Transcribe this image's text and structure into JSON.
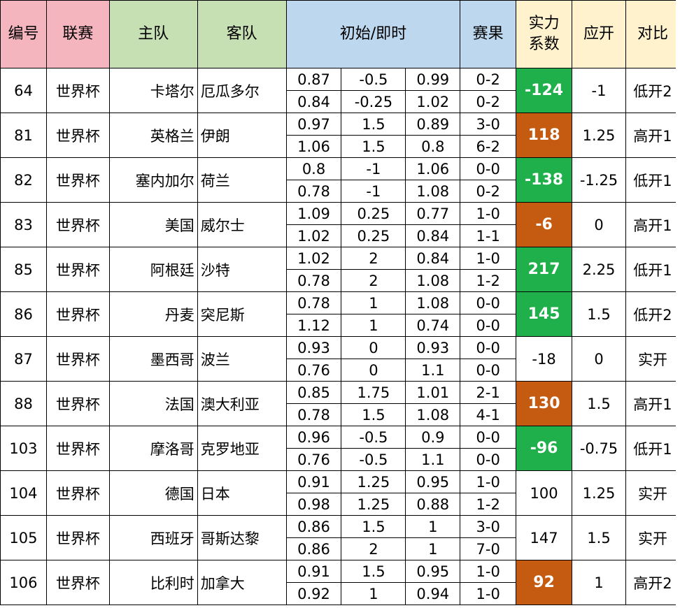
{
  "headers": {
    "id": "编号",
    "league": "联赛",
    "home": "主队",
    "away": "客队",
    "odds": "初始/即时",
    "result": "赛果",
    "power": "实力系数",
    "handicap": "应开",
    "compare": "对比"
  },
  "colors": {
    "header_pink": "#F4B5BE",
    "header_green": "#C6E0B4",
    "header_blue": "#BDD7EE",
    "header_yellow": "#FFF2CC",
    "power_green": "#1FAF4B",
    "power_orange": "#C55A11"
  },
  "matches": [
    {
      "id": "64",
      "league": "世界杯",
      "home": "卡塔尔",
      "away": "厄瓜多尔",
      "odds": [
        [
          "0.87",
          "-0.5",
          "0.99"
        ],
        [
          "0.84",
          "-0.25",
          "1.02"
        ]
      ],
      "results": [
        "0-2",
        "0-2"
      ],
      "power": "-124",
      "power_color": "green",
      "handicap": "-1",
      "compare": "低开2"
    },
    {
      "id": "81",
      "league": "世界杯",
      "home": "英格兰",
      "away": "伊朗",
      "odds": [
        [
          "0.97",
          "1.5",
          "0.89"
        ],
        [
          "1.06",
          "1.5",
          "0.8"
        ]
      ],
      "results": [
        "3-0",
        "6-2"
      ],
      "power": "118",
      "power_color": "orange",
      "handicap": "1.25",
      "compare": "高开1"
    },
    {
      "id": "82",
      "league": "世界杯",
      "home": "塞内加尔",
      "away": "荷兰",
      "odds": [
        [
          "0.8",
          "-1",
          "1.06"
        ],
        [
          "0.78",
          "-1",
          "1.08"
        ]
      ],
      "results": [
        "0-0",
        "0-2"
      ],
      "power": "-138",
      "power_color": "green",
      "handicap": "-1.25",
      "compare": "低开1"
    },
    {
      "id": "83",
      "league": "世界杯",
      "home": "美国",
      "away": "威尔士",
      "odds": [
        [
          "1.09",
          "0.25",
          "0.77"
        ],
        [
          "1.02",
          "0.25",
          "0.84"
        ]
      ],
      "results": [
        "1-0",
        "1-1"
      ],
      "power": "-6",
      "power_color": "orange",
      "handicap": "0",
      "compare": "高开1"
    },
    {
      "id": "85",
      "league": "世界杯",
      "home": "阿根廷",
      "away": "沙特",
      "odds": [
        [
          "1.02",
          "2",
          "0.84"
        ],
        [
          "0.78",
          "2",
          "1.08"
        ]
      ],
      "results": [
        "1-0",
        "1-2"
      ],
      "power": "217",
      "power_color": "green",
      "handicap": "2.25",
      "compare": "低开1"
    },
    {
      "id": "86",
      "league": "世界杯",
      "home": "丹麦",
      "away": "突尼斯",
      "odds": [
        [
          "0.78",
          "1",
          "1.08"
        ],
        [
          "1.12",
          "1",
          "0.74"
        ]
      ],
      "results": [
        "0-0",
        "0-0"
      ],
      "power": "145",
      "power_color": "green",
      "handicap": "1.5",
      "compare": "低开2"
    },
    {
      "id": "87",
      "league": "世界杯",
      "home": "墨西哥",
      "away": "波兰",
      "odds": [
        [
          "0.93",
          "0",
          "0.93"
        ],
        [
          "0.76",
          "0",
          "1.1"
        ]
      ],
      "results": [
        "0-0",
        "0-0"
      ],
      "power": "-18",
      "power_color": "none",
      "handicap": "0",
      "compare": "实开"
    },
    {
      "id": "88",
      "league": "世界杯",
      "home": "法国",
      "away": "澳大利亚",
      "odds": [
        [
          "0.85",
          "1.75",
          "1.01"
        ],
        [
          "0.78",
          "1.5",
          "1.08"
        ]
      ],
      "results": [
        "2-1",
        "4-1"
      ],
      "power": "130",
      "power_color": "orange",
      "handicap": "1.5",
      "compare": "高开1"
    },
    {
      "id": "103",
      "league": "世界杯",
      "home": "摩洛哥",
      "away": "克罗地亚",
      "odds": [
        [
          "0.96",
          "-0.5",
          "0.9"
        ],
        [
          "0.76",
          "-0.5",
          "1.1"
        ]
      ],
      "results": [
        "0-0",
        "0-0"
      ],
      "power": "-96",
      "power_color": "green",
      "handicap": "-0.75",
      "compare": "低开1"
    },
    {
      "id": "104",
      "league": "世界杯",
      "home": "德国",
      "away": "日本",
      "odds": [
        [
          "0.91",
          "1.25",
          "0.95"
        ],
        [
          "0.98",
          "1.25",
          "0.88"
        ]
      ],
      "results": [
        "1-0",
        "1-2"
      ],
      "power": "100",
      "power_color": "none",
      "handicap": "1.25",
      "compare": "实开"
    },
    {
      "id": "105",
      "league": "世界杯",
      "home": "西班牙",
      "away": "哥斯达黎",
      "odds": [
        [
          "0.86",
          "1.5",
          "1"
        ],
        [
          "0.86",
          "2",
          "1"
        ]
      ],
      "results": [
        "3-0",
        "7-0"
      ],
      "power": "147",
      "power_color": "none",
      "handicap": "1.5",
      "compare": "实开"
    },
    {
      "id": "106",
      "league": "世界杯",
      "home": "比利时",
      "away": "加拿大",
      "odds": [
        [
          "0.91",
          "1.5",
          "0.95"
        ],
        [
          "0.92",
          "1",
          "0.94"
        ]
      ],
      "results": [
        "1-0",
        "1-0"
      ],
      "power": "92",
      "power_color": "orange",
      "handicap": "1",
      "compare": "高开2"
    }
  ]
}
